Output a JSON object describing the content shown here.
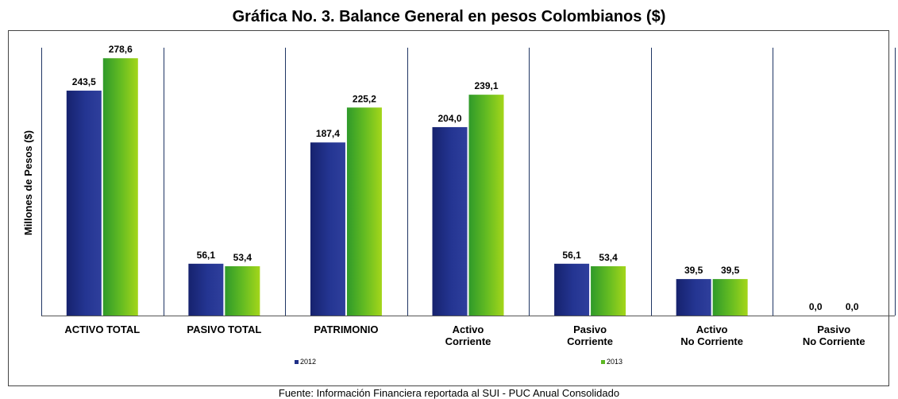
{
  "chart_data": {
    "type": "bar",
    "title": "Gráfica No. 3. Balance General en pesos Colombianos ($)",
    "xlabel": "",
    "ylabel": "Millones de Pesos ($)",
    "ylim": [
      0,
      290
    ],
    "grid": false,
    "legend": "bottom",
    "categories": [
      [
        "ACTIVO TOTAL"
      ],
      [
        "PASIVO TOTAL"
      ],
      [
        "PATRIMONIO"
      ],
      [
        "Activo",
        "Corriente"
      ],
      [
        "Pasivo",
        "Corriente"
      ],
      [
        "Activo",
        "No Corriente"
      ],
      [
        "Pasivo",
        "No Corriente"
      ]
    ],
    "series": [
      {
        "name": "2012",
        "color": "#1f2f86",
        "values": [
          243.5,
          56.1,
          187.4,
          204.0,
          56.1,
          39.5,
          0.0
        ],
        "labels": [
          "243,5",
          "56,1",
          "187,4",
          "204,0",
          "56,1",
          "39,5",
          "0,0"
        ]
      },
      {
        "name": "2013",
        "color": "#5cb823",
        "values": [
          278.6,
          53.4,
          225.2,
          239.1,
          53.4,
          39.5,
          0.0
        ],
        "labels": [
          "278,6",
          "53,4",
          "225,2",
          "239,1",
          "53,4",
          "39,5",
          "0,0"
        ]
      }
    ]
  },
  "footer": {
    "source": "Fuente: Información Financiera reportada al SUI - PUC Anual Consolidado"
  }
}
